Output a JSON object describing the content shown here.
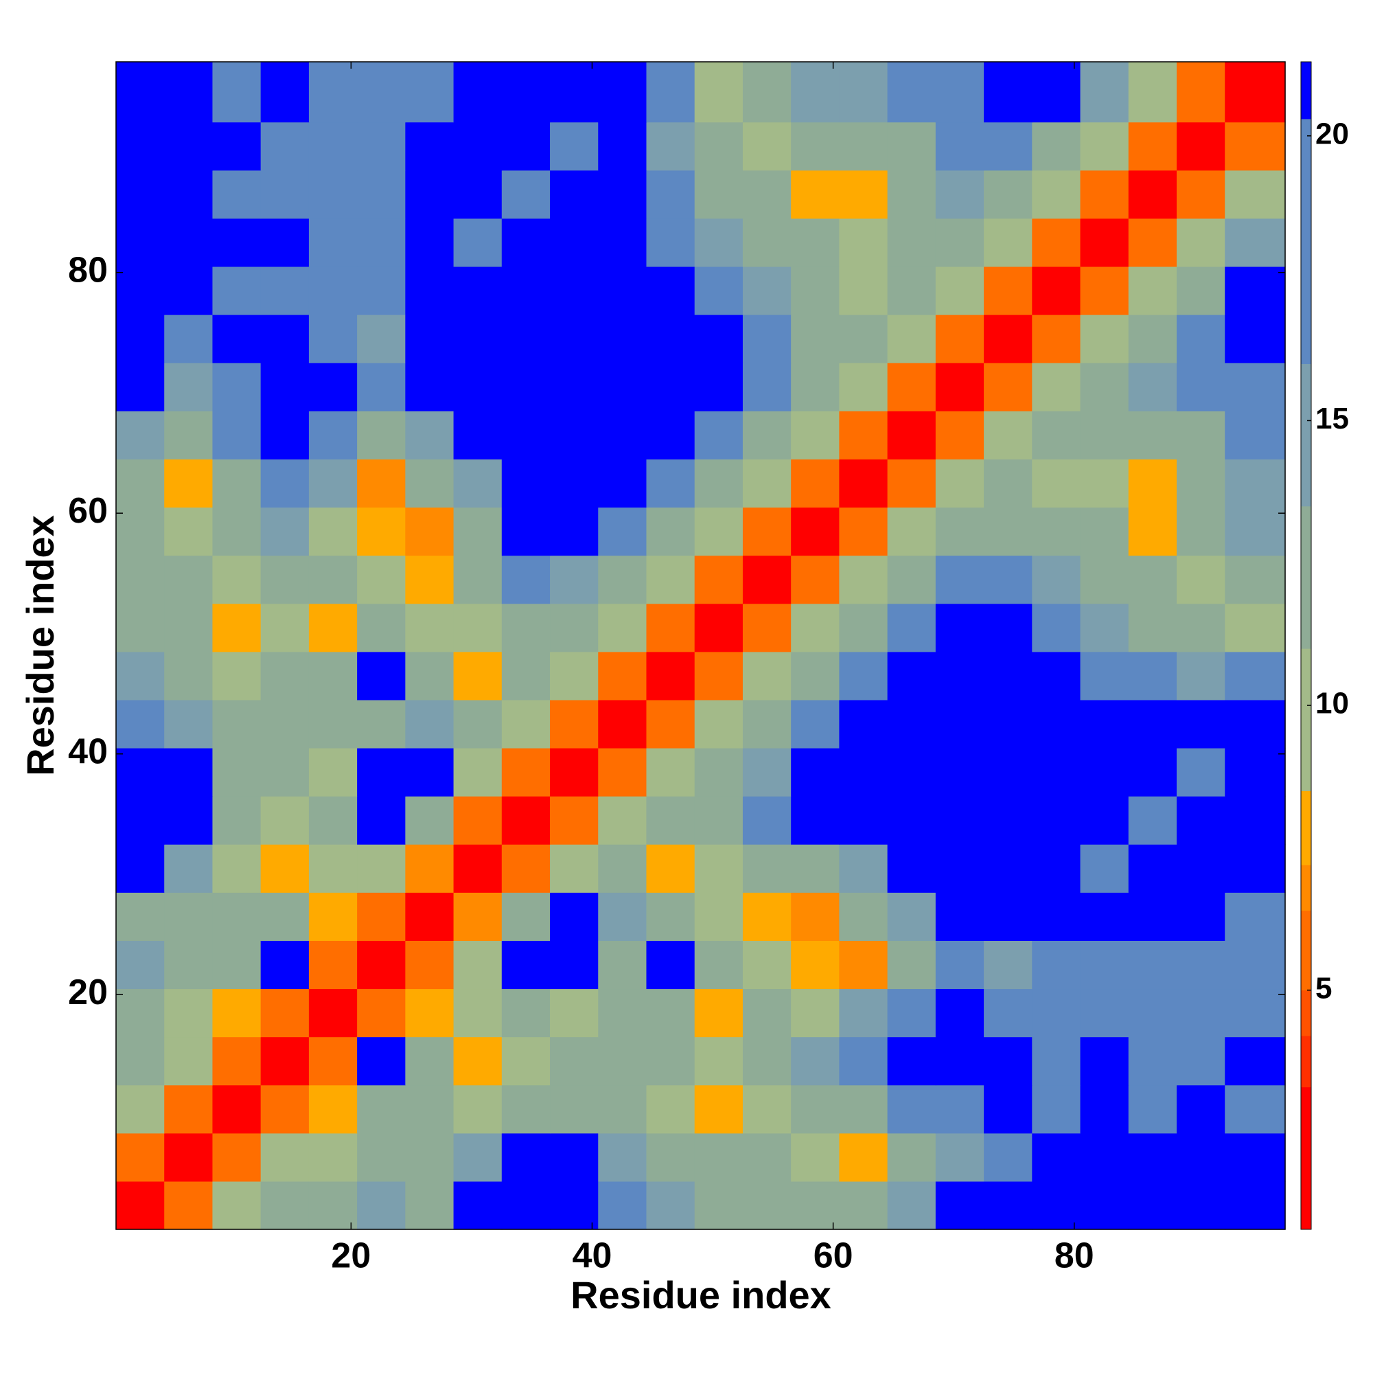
{
  "chart_data": {
    "type": "heatmap",
    "xlabel": "Residue index",
    "ylabel": "Residue index",
    "xlim": [
      0.5,
      97.5
    ],
    "ylim": [
      0.5,
      97.5
    ],
    "xticks": [
      20,
      40,
      60,
      80
    ],
    "yticks": [
      20,
      40,
      60,
      80
    ],
    "xbins": [
      0.5,
      4.5,
      8.5,
      12.5,
      16.5,
      20.5,
      24.5,
      28.5,
      32.5,
      36.5,
      40.5,
      44.5,
      48.5,
      52.5,
      56.5,
      60.5,
      64.5,
      68.5,
      72.5,
      76.5,
      80.5,
      84.5,
      88.5,
      92.5,
      97.5
    ],
    "ybins": [
      0.5,
      4.5,
      8.5,
      12.5,
      16.5,
      20.5,
      24.5,
      28.5,
      32.5,
      36.5,
      40.5,
      44.5,
      48.5,
      52.5,
      56.5,
      60.5,
      64.5,
      68.5,
      72.5,
      76.5,
      80.5,
      84.5,
      88.5,
      92.5,
      97.5
    ],
    "z": [
      [
        2,
        6,
        10,
        13,
        12,
        14,
        12,
        21,
        21,
        21,
        16,
        14,
        13,
        12,
        11,
        13,
        15,
        21,
        21,
        21,
        21,
        21,
        21,
        21
      ],
      [
        6,
        2,
        6,
        10,
        9,
        11,
        12,
        14,
        21,
        21,
        14,
        13,
        12,
        11,
        10,
        8,
        12,
        15,
        18,
        21,
        21,
        21,
        21,
        21
      ],
      [
        10,
        6,
        2,
        6,
        8,
        12,
        12,
        10,
        12,
        13,
        12,
        10,
        8,
        9,
        11,
        13,
        16,
        18,
        21,
        18,
        21,
        18,
        21,
        18
      ],
      [
        13,
        10,
        6,
        2,
        6,
        21,
        12,
        8,
        10,
        12,
        13,
        11,
        9,
        12,
        14,
        17,
        21,
        21,
        21,
        18,
        21,
        18,
        18,
        21
      ],
      [
        12,
        9,
        8,
        6,
        2,
        6,
        8,
        9,
        11,
        10,
        12,
        13,
        8,
        11,
        10,
        14,
        18,
        21,
        18,
        18,
        17,
        18,
        18,
        18
      ],
      [
        14,
        11,
        12,
        21,
        6,
        2,
        6,
        10,
        21,
        21,
        13,
        21,
        12,
        9,
        8,
        7,
        13,
        16,
        15,
        16,
        16,
        17,
        17,
        16
      ],
      [
        12,
        12,
        12,
        12,
        8,
        6,
        2,
        7,
        12,
        21,
        14,
        13,
        9,
        8,
        7,
        11,
        14,
        21,
        21,
        21,
        21,
        21,
        21,
        18
      ],
      [
        21,
        14,
        10,
        8,
        9,
        10,
        7,
        2,
        6,
        10,
        12,
        8,
        10,
        11,
        13,
        14,
        21,
        21,
        21,
        21,
        18,
        21,
        21,
        21
      ],
      [
        21,
        21,
        12,
        10,
        11,
        21,
        12,
        6,
        2,
        6,
        10,
        12,
        13,
        16,
        21,
        21,
        21,
        21,
        21,
        21,
        21,
        18,
        21,
        21
      ],
      [
        21,
        21,
        13,
        12,
        10,
        21,
        21,
        10,
        6,
        2,
        5,
        9,
        12,
        14,
        21,
        21,
        21,
        21,
        21,
        21,
        21,
        21,
        18,
        21
      ],
      [
        16,
        14,
        12,
        13,
        12,
        13,
        14,
        12,
        10,
        5,
        2,
        5,
        10,
        13,
        16,
        21,
        21,
        21,
        21,
        21,
        21,
        21,
        21,
        21
      ],
      [
        14,
        13,
        10,
        11,
        13,
        21,
        13,
        8,
        12,
        9,
        5,
        2,
        6,
        10,
        13,
        16,
        21,
        21,
        21,
        21,
        18,
        16,
        15,
        16
      ],
      [
        13,
        12,
        8,
        9,
        8,
        12,
        9,
        10,
        13,
        12,
        10,
        6,
        2,
        6,
        10,
        13,
        16,
        21,
        21,
        17,
        15,
        13,
        12,
        10
      ],
      [
        12,
        11,
        9,
        12,
        11,
        9,
        8,
        11,
        16,
        14,
        13,
        10,
        6,
        2,
        6,
        10,
        13,
        16,
        17,
        14,
        13,
        11,
        9,
        12
      ],
      [
        11,
        10,
        11,
        14,
        10,
        8,
        7,
        13,
        21,
        21,
        16,
        13,
        10,
        6,
        2,
        6,
        10,
        13,
        12,
        11,
        12,
        8,
        11,
        14
      ],
      [
        13,
        8,
        13,
        17,
        14,
        7,
        11,
        14,
        21,
        21,
        21,
        16,
        13,
        10,
        6,
        2,
        6,
        10,
        12,
        9,
        10,
        8,
        12,
        15
      ],
      [
        15,
        12,
        16,
        21,
        18,
        13,
        14,
        21,
        21,
        21,
        21,
        21,
        16,
        13,
        10,
        6,
        2,
        6,
        9,
        11,
        12,
        13,
        12,
        16
      ],
      [
        21,
        15,
        18,
        21,
        21,
        16,
        21,
        21,
        21,
        21,
        21,
        21,
        21,
        16,
        13,
        10,
        6,
        2,
        6,
        10,
        12,
        14,
        16,
        18
      ],
      [
        21,
        18,
        21,
        21,
        18,
        15,
        21,
        21,
        21,
        21,
        21,
        21,
        21,
        17,
        12,
        12,
        9,
        6,
        2,
        6,
        9,
        13,
        16,
        21
      ],
      [
        21,
        21,
        18,
        18,
        18,
        16,
        21,
        21,
        21,
        21,
        21,
        21,
        17,
        14,
        11,
        9,
        11,
        10,
        6,
        2,
        6,
        10,
        13,
        21
      ],
      [
        21,
        21,
        21,
        21,
        17,
        16,
        21,
        18,
        21,
        21,
        21,
        18,
        15,
        13,
        12,
        10,
        12,
        12,
        9,
        6,
        2,
        6,
        10,
        14
      ],
      [
        21,
        21,
        18,
        18,
        18,
        17,
        21,
        21,
        18,
        21,
        21,
        16,
        13,
        11,
        8,
        8,
        13,
        14,
        13,
        10,
        6,
        2,
        6,
        10
      ],
      [
        21,
        21,
        21,
        18,
        18,
        17,
        21,
        21,
        21,
        18,
        21,
        15,
        12,
        9,
        11,
        12,
        12,
        16,
        16,
        13,
        10,
        6,
        2,
        6
      ],
      [
        21,
        21,
        18,
        21,
        18,
        16,
        18,
        21,
        21,
        21,
        21,
        16,
        10,
        12,
        14,
        15,
        16,
        18,
        21,
        21,
        14,
        10,
        6,
        2
      ]
    ],
    "zlim": [
      0.8,
      21.3
    ],
    "colorbar": {
      "ticks": [
        5,
        10,
        15,
        20
      ],
      "levels": [
        0.8,
        3.3,
        4.2,
        5,
        6.4,
        7.2,
        8.5,
        11,
        13.5,
        16,
        20.3,
        21.3
      ],
      "colors": [
        "#ff0000",
        "#ff3000",
        "#ff5200",
        "#ff6e00",
        "#ff8a00",
        "#ffaa00",
        "#a3ba89",
        "#8fac96",
        "#7c9fae",
        "#5d88c2",
        "#0000ff"
      ]
    }
  }
}
